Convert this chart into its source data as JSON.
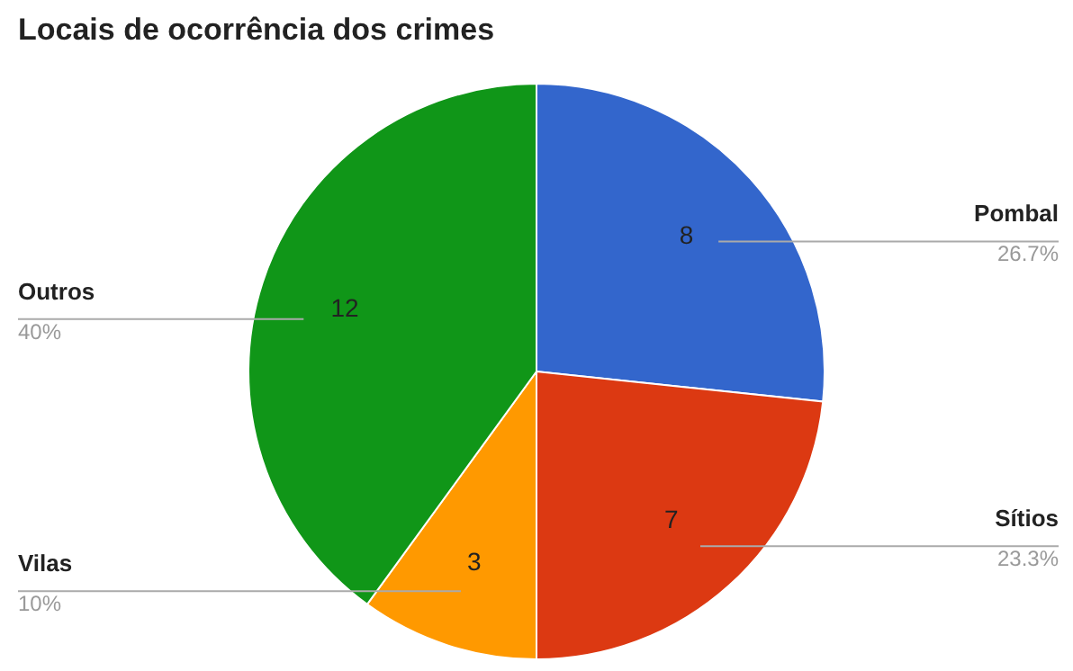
{
  "chart_data": {
    "type": "pie",
    "title": "Locais de ocorrência dos crimes",
    "categories": [
      "Pombal",
      "Sítios",
      "Vilas",
      "Outros"
    ],
    "values": [
      8,
      7,
      3,
      12
    ],
    "colors": [
      "#3366cc",
      "#dc3912",
      "#ff9900",
      "#109618"
    ],
    "data_labels": true,
    "annotations": [
      {
        "text": "26.7%",
        "x": "Pombal"
      },
      {
        "text": "23.3%",
        "x": "Sítios"
      },
      {
        "text": "10%",
        "x": "Vilas"
      },
      {
        "text": "40%",
        "x": "Outros"
      }
    ]
  }
}
